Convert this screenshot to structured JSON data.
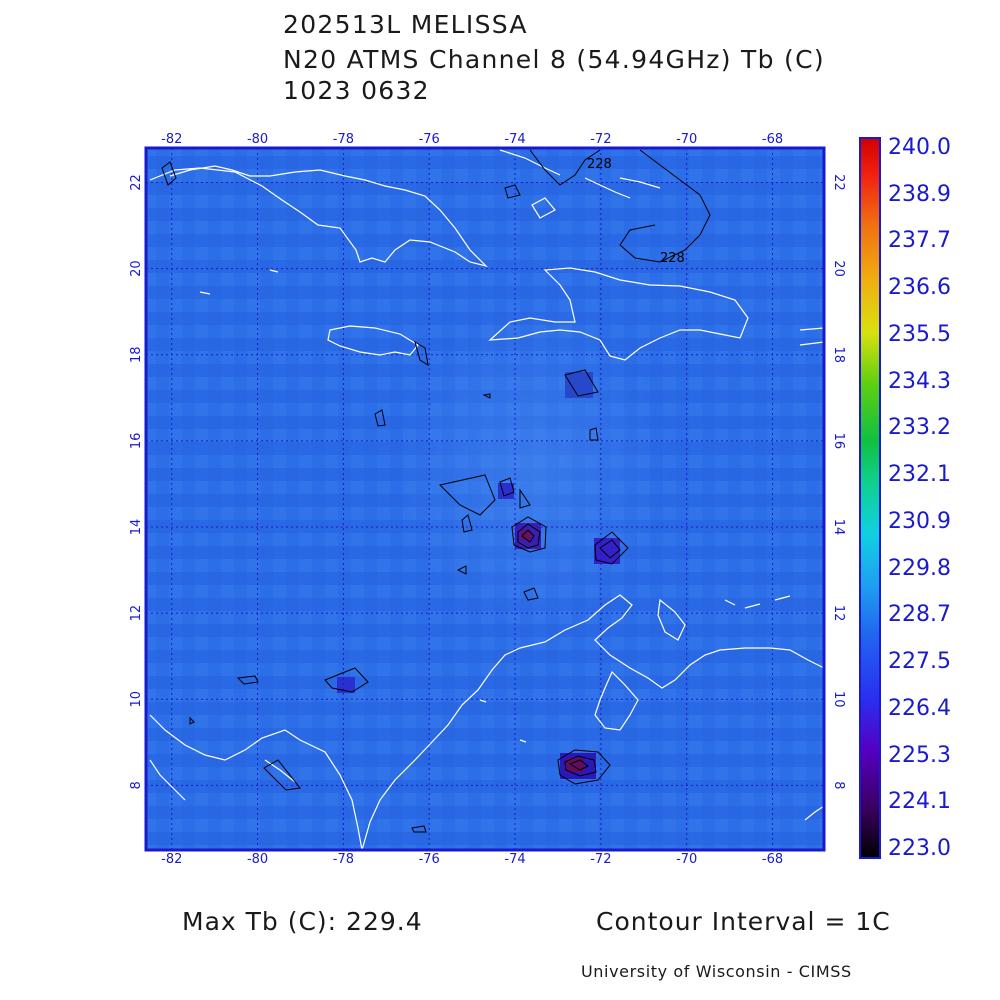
{
  "title": {
    "storm": "202513L MELISSA",
    "product": "N20 ATMS Channel 8 (54.94GHz) Tb (C)",
    "datetime": "1023 0632"
  },
  "map": {
    "lon_range": [
      -82.6,
      -66.8
    ],
    "lat_range": [
      6.5,
      22.8
    ],
    "lon_ticks": [
      "-82",
      "-80",
      "-78",
      "-76",
      "-74",
      "-72",
      "-70",
      "-68"
    ],
    "lat_ticks": [
      "8",
      "10",
      "12",
      "14",
      "16",
      "18",
      "20",
      "22"
    ],
    "lon_tick_values": [
      -82,
      -80,
      -78,
      -76,
      -74,
      -72,
      -70,
      -68
    ],
    "lat_tick_values": [
      8,
      10,
      12,
      14,
      16,
      18,
      20,
      22
    ],
    "background_color": "#2b6be6",
    "contour_labels": [
      "228",
      "228"
    ]
  },
  "colorbar": {
    "labels": [
      "240.0",
      "238.9",
      "237.7",
      "236.6",
      "235.5",
      "234.3",
      "233.2",
      "232.1",
      "230.9",
      "229.8",
      "228.7",
      "227.5",
      "226.4",
      "225.3",
      "224.1",
      "223.0"
    ],
    "min": 223.0,
    "max": 240.0
  },
  "footer": {
    "max_tb": "Max Tb (C): 229.4",
    "contour_interval": "Contour Interval = 1C",
    "credit": "University of Wisconsin - CIMSS"
  }
}
